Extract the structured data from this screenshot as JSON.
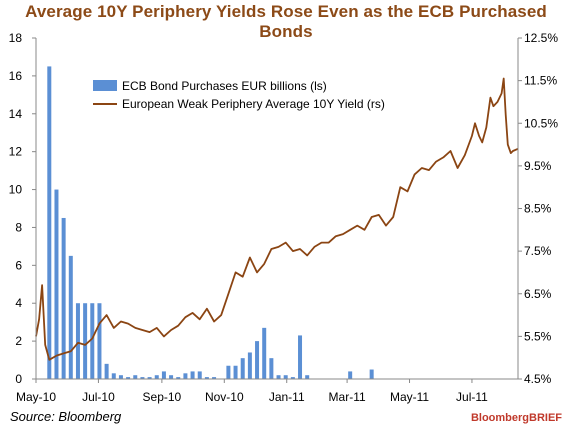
{
  "title": "Average 10Y Periphery Yields Rose Even as the ECB Purchased Bonds",
  "source": "Source: Bloomberg",
  "brand": "BloombergBRIEF",
  "chart_data": {
    "type": "bar+line",
    "x_tick_labels": [
      "May-10",
      "Jul-10",
      "Sep-10",
      "Nov-10",
      "Jan-11",
      "Mar-11",
      "May-11",
      "Jul-11"
    ],
    "x_ticks": [
      "2010-05-01",
      "2010-07-01",
      "2010-09-01",
      "2010-11-01",
      "2011-01-01",
      "2011-03-01",
      "2011-05-01",
      "2011-07-01"
    ],
    "x_range": [
      "2010-05-01",
      "2011-08-15"
    ],
    "left_axis": {
      "min": 0,
      "max": 18,
      "step": 2,
      "tick_labels": [
        "0",
        "2",
        "4",
        "6",
        "8",
        "10",
        "12",
        "14",
        "16",
        "18"
      ]
    },
    "right_axis": {
      "min": 4.5,
      "max": 12.5,
      "step": 1,
      "tick_labels": [
        "4.5%",
        "5.5%",
        "6.5%",
        "7.5%",
        "8.5%",
        "9.5%",
        "10.5%",
        "11.5%",
        "12.5%"
      ]
    },
    "legend": {
      "placement": "top-left",
      "entries": [
        "ECB Bond Purchases EUR billions (ls)",
        "European Weak Periphery Average 10Y Yield (rs)"
      ]
    },
    "colors": {
      "bars": "#5b8fd4",
      "line": "#8b4513",
      "title": "#8c4a17",
      "brand": "#c0392b"
    },
    "series": [
      {
        "name": "ECB Bond Purchases EUR billions (ls)",
        "type": "bar",
        "points": [
          [
            "2010-05-14",
            16.5
          ],
          [
            "2010-05-21",
            10.0
          ],
          [
            "2010-05-28",
            8.5
          ],
          [
            "2010-06-04",
            6.5
          ],
          [
            "2010-06-11",
            4.0
          ],
          [
            "2010-06-18",
            4.0
          ],
          [
            "2010-06-25",
            4.0
          ],
          [
            "2010-07-02",
            4.0
          ],
          [
            "2010-07-09",
            0.8
          ],
          [
            "2010-07-16",
            0.3
          ],
          [
            "2010-07-23",
            0.2
          ],
          [
            "2010-07-30",
            0.1
          ],
          [
            "2010-08-06",
            0.2
          ],
          [
            "2010-08-13",
            0.1
          ],
          [
            "2010-08-20",
            0.1
          ],
          [
            "2010-08-27",
            0.2
          ],
          [
            "2010-09-03",
            0.4
          ],
          [
            "2010-09-10",
            0.2
          ],
          [
            "2010-09-17",
            0.1
          ],
          [
            "2010-09-24",
            0.3
          ],
          [
            "2010-10-01",
            0.4
          ],
          [
            "2010-10-08",
            0.4
          ],
          [
            "2010-10-15",
            0.1
          ],
          [
            "2010-10-22",
            0.1
          ],
          [
            "2010-11-05",
            0.7
          ],
          [
            "2010-11-12",
            0.7
          ],
          [
            "2010-11-19",
            1.1
          ],
          [
            "2010-11-26",
            1.4
          ],
          [
            "2010-12-03",
            2.0
          ],
          [
            "2010-12-10",
            2.7
          ],
          [
            "2010-12-17",
            1.1
          ],
          [
            "2010-12-24",
            0.2
          ],
          [
            "2010-12-31",
            0.2
          ],
          [
            "2011-01-07",
            0.1
          ],
          [
            "2011-01-14",
            2.3
          ],
          [
            "2011-01-21",
            0.2
          ],
          [
            "2011-03-04",
            0.4
          ],
          [
            "2011-03-25",
            0.5
          ]
        ]
      },
      {
        "name": "European Weak Periphery Average 10Y Yield (rs)",
        "type": "line",
        "points": [
          [
            "2010-05-01",
            5.5
          ],
          [
            "2010-05-04",
            5.9
          ],
          [
            "2010-05-07",
            6.7
          ],
          [
            "2010-05-10",
            5.3
          ],
          [
            "2010-05-14",
            4.95
          ],
          [
            "2010-05-21",
            5.05
          ],
          [
            "2010-05-28",
            5.1
          ],
          [
            "2010-06-04",
            5.15
          ],
          [
            "2010-06-11",
            5.35
          ],
          [
            "2010-06-18",
            5.3
          ],
          [
            "2010-06-25",
            5.45
          ],
          [
            "2010-07-02",
            5.8
          ],
          [
            "2010-07-09",
            6.0
          ],
          [
            "2010-07-16",
            5.7
          ],
          [
            "2010-07-23",
            5.85
          ],
          [
            "2010-07-30",
            5.8
          ],
          [
            "2010-08-06",
            5.7
          ],
          [
            "2010-08-13",
            5.65
          ],
          [
            "2010-08-20",
            5.6
          ],
          [
            "2010-08-27",
            5.7
          ],
          [
            "2010-09-03",
            5.5
          ],
          [
            "2010-09-10",
            5.65
          ],
          [
            "2010-09-17",
            5.75
          ],
          [
            "2010-09-24",
            5.95
          ],
          [
            "2010-10-01",
            6.05
          ],
          [
            "2010-10-08",
            5.9
          ],
          [
            "2010-10-15",
            6.15
          ],
          [
            "2010-10-22",
            5.85
          ],
          [
            "2010-10-29",
            6.0
          ],
          [
            "2010-11-05",
            6.5
          ],
          [
            "2010-11-12",
            7.0
          ],
          [
            "2010-11-19",
            6.9
          ],
          [
            "2010-11-26",
            7.35
          ],
          [
            "2010-12-03",
            7.0
          ],
          [
            "2010-12-10",
            7.2
          ],
          [
            "2010-12-17",
            7.55
          ],
          [
            "2010-12-24",
            7.6
          ],
          [
            "2010-12-31",
            7.7
          ],
          [
            "2011-01-07",
            7.5
          ],
          [
            "2011-01-14",
            7.55
          ],
          [
            "2011-01-21",
            7.4
          ],
          [
            "2011-01-28",
            7.6
          ],
          [
            "2011-02-04",
            7.7
          ],
          [
            "2011-02-11",
            7.7
          ],
          [
            "2011-02-18",
            7.85
          ],
          [
            "2011-02-25",
            7.9
          ],
          [
            "2011-03-04",
            8.0
          ],
          [
            "2011-03-11",
            8.1
          ],
          [
            "2011-03-18",
            8.0
          ],
          [
            "2011-03-25",
            8.3
          ],
          [
            "2011-04-01",
            8.35
          ],
          [
            "2011-04-08",
            8.1
          ],
          [
            "2011-04-15",
            8.3
          ],
          [
            "2011-04-22",
            9.0
          ],
          [
            "2011-04-29",
            8.9
          ],
          [
            "2011-05-06",
            9.3
          ],
          [
            "2011-05-13",
            9.45
          ],
          [
            "2011-05-20",
            9.4
          ],
          [
            "2011-05-27",
            9.6
          ],
          [
            "2011-06-03",
            9.7
          ],
          [
            "2011-06-10",
            9.85
          ],
          [
            "2011-06-17",
            9.45
          ],
          [
            "2011-06-24",
            9.75
          ],
          [
            "2011-07-01",
            10.2
          ],
          [
            "2011-07-04",
            10.5
          ],
          [
            "2011-07-08",
            10.2
          ],
          [
            "2011-07-11",
            10.05
          ],
          [
            "2011-07-15",
            10.4
          ],
          [
            "2011-07-19",
            11.1
          ],
          [
            "2011-07-22",
            10.9
          ],
          [
            "2011-07-26",
            11.0
          ],
          [
            "2011-07-30",
            11.2
          ],
          [
            "2011-08-01",
            11.55
          ],
          [
            "2011-08-03",
            10.7
          ],
          [
            "2011-08-05",
            10.0
          ],
          [
            "2011-08-08",
            9.8
          ],
          [
            "2011-08-10",
            9.85
          ],
          [
            "2011-08-15",
            9.9
          ]
        ]
      }
    ]
  }
}
